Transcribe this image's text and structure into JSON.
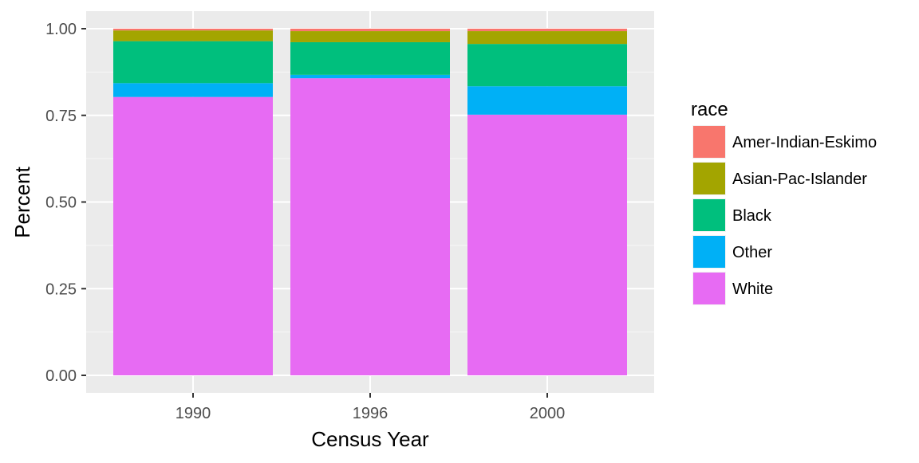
{
  "chart_data": {
    "type": "bar",
    "stacked": true,
    "xlabel": "Census Year",
    "ylabel": "Percent",
    "ylim": [
      0,
      1.0
    ],
    "yticks": [
      "0.00",
      "0.25",
      "0.50",
      "0.75",
      "1.00"
    ],
    "ytick_values": [
      0,
      0.25,
      0.5,
      0.75,
      1.0
    ],
    "categories": [
      "1990",
      "1996",
      "2000"
    ],
    "legend_title": "race",
    "legend_placement": "right",
    "grid": true,
    "series": [
      {
        "name": "White",
        "color": "#E76BF3",
        "values": [
          0.803,
          0.857,
          0.752
        ]
      },
      {
        "name": "Other",
        "color": "#00B0F6",
        "values": [
          0.04,
          0.01,
          0.082
        ]
      },
      {
        "name": "Black",
        "color": "#00BF7D",
        "values": [
          0.121,
          0.094,
          0.122
        ]
      },
      {
        "name": "Asian-Pac-Islander",
        "color": "#A3A500",
        "values": [
          0.031,
          0.032,
          0.037
        ]
      },
      {
        "name": "Amer-Indian-Eskimo",
        "color": "#F8766D",
        "values": [
          0.005,
          0.007,
          0.007
        ]
      }
    ],
    "legend_order": [
      "Amer-Indian-Eskimo",
      "Asian-Pac-Islander",
      "Black",
      "Other",
      "White"
    ]
  }
}
